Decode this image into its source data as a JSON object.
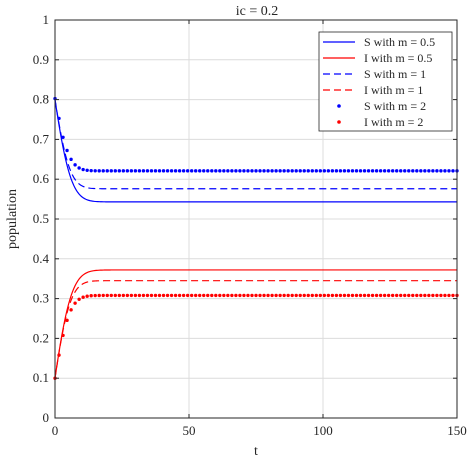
{
  "chart_data": {
    "type": "line",
    "title": "ic = 0.2",
    "xlabel": "t",
    "ylabel": "population",
    "xlim": [
      0,
      150
    ],
    "ylim": [
      0,
      1
    ],
    "xticks": [
      0,
      50,
      100,
      150
    ],
    "yticks": [
      0,
      0.1,
      0.2,
      0.3,
      0.4,
      0.5,
      0.6,
      0.7,
      0.8,
      0.9,
      1
    ],
    "grid": true,
    "legend_position": "top-right",
    "series": [
      {
        "name": "S with m = 0.5",
        "color": "#0000ff",
        "style": "solid",
        "x0": 0,
        "y0": 0.8,
        "yss": 0.543,
        "tau": 3.5,
        "peak": 0.0
      },
      {
        "name": "I with m = 0.5",
        "color": "#ff0000",
        "style": "solid",
        "x0": 0,
        "y0": 0.1,
        "yss": 0.372,
        "tau": 3.6,
        "peak": 0.0
      },
      {
        "name": "S with m = 1",
        "color": "#0000ff",
        "style": "dashed",
        "x0": 0,
        "y0": 0.8,
        "yss": 0.576,
        "tau": 3.2,
        "peak": 0.0
      },
      {
        "name": "I with m = 1",
        "color": "#ff0000",
        "style": "dashed",
        "x0": 0,
        "y0": 0.1,
        "yss": 0.345,
        "tau": 3.3,
        "peak": 0.0
      },
      {
        "name": "S with m = 2",
        "color": "#0000ff",
        "style": "dotted",
        "x0": 0,
        "y0": 0.8,
        "yss": 0.621,
        "tau": 3.0,
        "peak": 0.005
      },
      {
        "name": "I with m = 2",
        "color": "#ff0000",
        "style": "dotted",
        "x0": 0,
        "y0": 0.1,
        "yss": 0.308,
        "tau": 3.1,
        "peak": 0.0
      }
    ]
  }
}
